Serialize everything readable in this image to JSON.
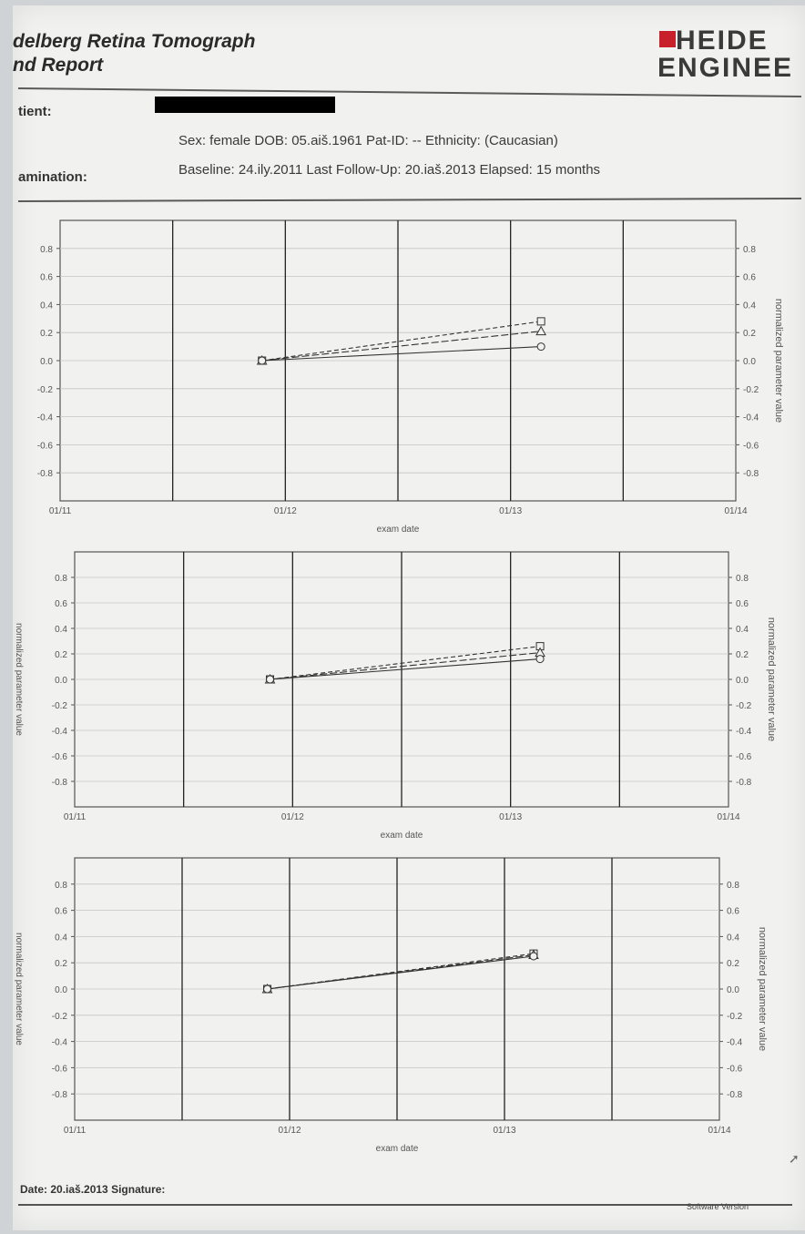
{
  "header": {
    "title_line1": "delberg Retina Tomograph",
    "title_line2": "nd Report",
    "logo_line1": "HEIDE",
    "logo_line2": "ENGINEE",
    "logo_color": "#c8202a"
  },
  "patient": {
    "label": "tient:",
    "name_redacted": true,
    "details": "Sex: female   DOB: 05.aiš.1961   Pat-ID: --   Ethnicity: (Caucasian)"
  },
  "examination": {
    "label": "amination:",
    "details": "Baseline: 24.ily.2011   Last Follow-Up: 20.iaš.2013   Elapsed: 15 months"
  },
  "chart_data": [
    {
      "type": "line",
      "xlabel": "exam date",
      "ylabel_left": "",
      "ylabel_right": "normalized parameter value",
      "x_ticks": [
        "01/11",
        "01/12",
        "01/13",
        "01/14"
      ],
      "y_ticks": [
        -0.8,
        -0.6,
        -0.4,
        -0.2,
        0.0,
        0.2,
        0.4,
        0.6,
        0.8
      ],
      "ylim": [
        -1.0,
        1.0
      ],
      "xlim": [
        "2011-01",
        "2014-01"
      ],
      "grid": true,
      "series": [
        {
          "marker": "square",
          "values": [
            {
              "x": "2011-11-24",
              "y": 0.0
            },
            {
              "x": "2013-02-20",
              "y": 0.28
            }
          ]
        },
        {
          "marker": "triangle",
          "values": [
            {
              "x": "2011-11-24",
              "y": 0.0
            },
            {
              "x": "2013-02-20",
              "y": 0.21
            }
          ]
        },
        {
          "marker": "circle",
          "values": [
            {
              "x": "2011-11-24",
              "y": 0.0
            },
            {
              "x": "2013-02-20",
              "y": 0.1
            }
          ]
        }
      ]
    },
    {
      "type": "line",
      "xlabel": "exam date",
      "ylabel_left": "normalized parameter value",
      "ylabel_right": "normalized parameter value",
      "x_ticks": [
        "01/11",
        "01/12",
        "01/13",
        "01/14"
      ],
      "y_ticks": [
        -0.8,
        -0.6,
        -0.4,
        -0.2,
        0.0,
        0.2,
        0.4,
        0.6,
        0.8
      ],
      "ylim": [
        -1.0,
        1.0
      ],
      "xlim": [
        "2011-01",
        "2014-01"
      ],
      "grid": true,
      "series": [
        {
          "marker": "square",
          "values": [
            {
              "x": "2011-11-24",
              "y": 0.0
            },
            {
              "x": "2013-02-20",
              "y": 0.26
            }
          ]
        },
        {
          "marker": "triangle",
          "values": [
            {
              "x": "2011-11-24",
              "y": 0.0
            },
            {
              "x": "2013-02-20",
              "y": 0.21
            }
          ]
        },
        {
          "marker": "circle",
          "values": [
            {
              "x": "2011-11-24",
              "y": 0.0
            },
            {
              "x": "2013-02-20",
              "y": 0.16
            }
          ]
        }
      ]
    },
    {
      "type": "line",
      "xlabel": "exam date",
      "ylabel_left": "normalized parameter value",
      "ylabel_right": "normalized parameter value",
      "x_ticks": [
        "01/11",
        "01/12",
        "01/13",
        "01/14"
      ],
      "y_ticks": [
        -0.8,
        -0.6,
        -0.4,
        -0.2,
        0.0,
        0.2,
        0.4,
        0.6,
        0.8
      ],
      "ylim": [
        -1.0,
        1.0
      ],
      "xlim": [
        "2011-01",
        "2014-01"
      ],
      "grid": true,
      "series": [
        {
          "marker": "square",
          "values": [
            {
              "x": "2011-11-24",
              "y": 0.0
            },
            {
              "x": "2013-02-20",
              "y": 0.27
            }
          ]
        },
        {
          "marker": "triangle",
          "values": [
            {
              "x": "2011-11-24",
              "y": 0.0
            },
            {
              "x": "2013-02-20",
              "y": 0.26
            }
          ]
        },
        {
          "marker": "circle",
          "values": [
            {
              "x": "2011-11-24",
              "y": 0.0
            },
            {
              "x": "2013-02-20",
              "y": 0.25
            }
          ]
        }
      ]
    }
  ],
  "footer": {
    "date_signature": "Date: 20.iaš.2013  Signature:",
    "software": "Software Version"
  }
}
